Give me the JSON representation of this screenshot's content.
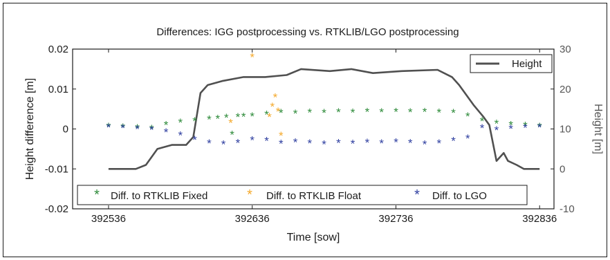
{
  "chart_data": {
    "type": "scatter",
    "title": "Differences: IGG postprocessing vs. RTKLIB/LGO postprocessing",
    "xlabel": "Time [sow]",
    "ylabel": "Height difference [m]",
    "y2label": "Height [m]",
    "xlim": [
      392511,
      392846
    ],
    "ylim": [
      -0.02,
      0.02
    ],
    "y2lim": [
      -10,
      30
    ],
    "x_ticks": [
      392536,
      392636,
      392736,
      392836
    ],
    "x_tick_labels": [
      "392536",
      "392636",
      "392736",
      "392836"
    ],
    "y_ticks": [
      0.02,
      0.01,
      0,
      -0.01,
      -0.02
    ],
    "y_tick_labels": [
      "0.02",
      "0.01",
      "0",
      "-0.01",
      "-0.02"
    ],
    "y2_ticks": [
      30,
      20,
      10,
      0,
      -10
    ],
    "y2_tick_labels": [
      "30",
      "20",
      "10",
      "0",
      "-10"
    ],
    "grid": false,
    "series": [
      {
        "name": "Diff. to RTKLIB Fixed",
        "axis": "left",
        "marker": "*",
        "color": "#2e8b3a",
        "x": [
          392536,
          392546,
          392556,
          392566,
          392576,
          392586,
          392596,
          392606,
          392612,
          392618,
          392622,
          392626,
          392630,
          392636,
          392646,
          392656,
          392666,
          392676,
          392686,
          392696,
          392706,
          392716,
          392726,
          392736,
          392746,
          392756,
          392766,
          392776,
          392786,
          392796,
          392806,
          392816,
          392826,
          392836
        ],
        "y": [
          0.0008,
          0.0006,
          0.0004,
          0.0003,
          0.0012,
          0.0018,
          0.0022,
          0.0026,
          0.0028,
          0.003,
          -0.0012,
          0.0032,
          0.0033,
          0.0034,
          0.0038,
          0.0042,
          0.0041,
          0.0043,
          0.0042,
          0.0044,
          0.0043,
          0.0045,
          0.0044,
          0.0045,
          0.0044,
          0.0045,
          0.0043,
          0.0042,
          0.0034,
          0.0022,
          0.0016,
          0.0012,
          0.001,
          0.0008
        ]
      },
      {
        "name": "Diff. to RTKLIB Float",
        "axis": "left",
        "marker": "*",
        "color": "#f4a92c",
        "x": [
          392621,
          392636,
          392648,
          392650,
          392652,
          392654,
          392656
        ],
        "y": [
          0.0017,
          0.0182,
          0.0032,
          0.0058,
          0.0081,
          0.0046,
          -0.0015
        ]
      },
      {
        "name": "Diff. to LGO",
        "axis": "left",
        "marker": "*",
        "color": "#2f3fa0",
        "x": [
          392536,
          392546,
          392556,
          392566,
          392576,
          392586,
          392596,
          392606,
          392616,
          392626,
          392636,
          392646,
          392656,
          392666,
          392676,
          392686,
          392696,
          392706,
          392716,
          392726,
          392736,
          392746,
          392756,
          392766,
          392776,
          392786,
          392796,
          392806,
          392816,
          392826,
          392836
        ],
        "y": [
          0.0006,
          0.0004,
          0.0002,
          0.0,
          -0.0006,
          -0.0014,
          -0.0025,
          -0.0034,
          -0.0036,
          -0.0033,
          -0.0026,
          -0.0028,
          -0.0035,
          -0.0031,
          -0.0034,
          -0.0036,
          -0.0033,
          -0.0035,
          -0.0032,
          -0.0034,
          -0.0031,
          -0.0033,
          -0.0036,
          -0.0034,
          -0.0028,
          -0.0022,
          0.0004,
          -0.0001,
          0.0003,
          0.0005,
          0.0006
        ]
      },
      {
        "name": "Height",
        "axis": "right",
        "type": "line",
        "color": "#505050",
        "x": [
          392536,
          392555,
          392562,
          392570,
          392580,
          392590,
          392595,
          392600,
          392605,
          392615,
          392630,
          392645,
          392660,
          392670,
          392690,
          392705,
          392720,
          392740,
          392765,
          392775,
          392780,
          392790,
          392797,
          392801,
          392806,
          392811,
          392814,
          392820,
          392825,
          392836
        ],
        "y": [
          0,
          0,
          1,
          5,
          6,
          6,
          8,
          19,
          21,
          22,
          23,
          23,
          23.5,
          25,
          24.5,
          25,
          24,
          24.5,
          24.8,
          23,
          21,
          16,
          13,
          11,
          2,
          4,
          2,
          1,
          0,
          0
        ]
      }
    ],
    "legend": [
      {
        "position": "top-right",
        "entries": [
          "Height"
        ]
      },
      {
        "position": "bottom",
        "entries": [
          "Diff. to RTKLIB Fixed",
          "Diff. to RTKLIB Float",
          "Diff. to LGO"
        ]
      }
    ]
  }
}
